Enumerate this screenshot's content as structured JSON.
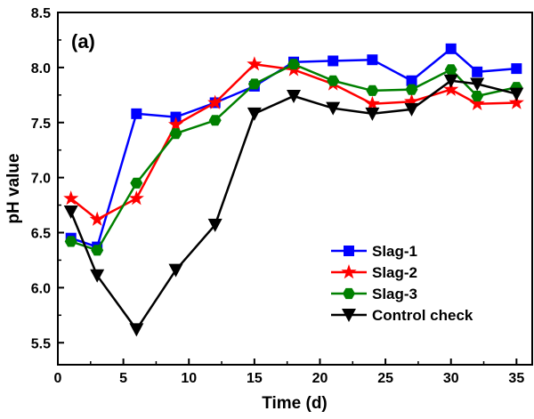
{
  "chart_data": {
    "type": "line",
    "panel_label": "(a)",
    "xlabel": "Time (d)",
    "ylabel": "pH value",
    "xlim": [
      0,
      36.2
    ],
    "ylim": [
      5.3,
      8.5
    ],
    "xticks": [
      "0",
      "5",
      "10",
      "15",
      "20",
      "25",
      "30",
      "35"
    ],
    "yticks": [
      "5.5",
      "6.0",
      "6.5",
      "7.0",
      "7.5",
      "8.0",
      "8.5"
    ],
    "legend_position": "bottom-right",
    "x": [
      1,
      3,
      6,
      9,
      12,
      15,
      18,
      21,
      24,
      27,
      30,
      32,
      35
    ],
    "series": [
      {
        "name": "Slag-1",
        "color": "#0000ff",
        "marker": "square",
        "values": [
          6.45,
          6.37,
          7.58,
          7.55,
          7.68,
          7.83,
          8.05,
          8.06,
          8.07,
          7.88,
          8.17,
          7.96,
          7.99
        ]
      },
      {
        "name": "Slag-2",
        "color": "#ff0000",
        "marker": "star",
        "values": [
          6.81,
          6.62,
          6.81,
          7.48,
          7.68,
          8.03,
          7.98,
          7.85,
          7.67,
          7.69,
          7.8,
          7.67,
          7.68
        ]
      },
      {
        "name": "Slag-3",
        "color": "#008000",
        "marker": "hexagon",
        "values": [
          6.42,
          6.34,
          6.95,
          7.4,
          7.52,
          7.85,
          8.03,
          7.88,
          7.79,
          7.8,
          7.98,
          7.74,
          7.82
        ]
      },
      {
        "name": "Control check",
        "color": "#000000",
        "marker": "triangle-down",
        "values": [
          6.69,
          6.11,
          5.62,
          6.16,
          6.57,
          7.58,
          7.74,
          7.63,
          7.58,
          7.62,
          7.88,
          7.85,
          7.76
        ]
      }
    ]
  }
}
